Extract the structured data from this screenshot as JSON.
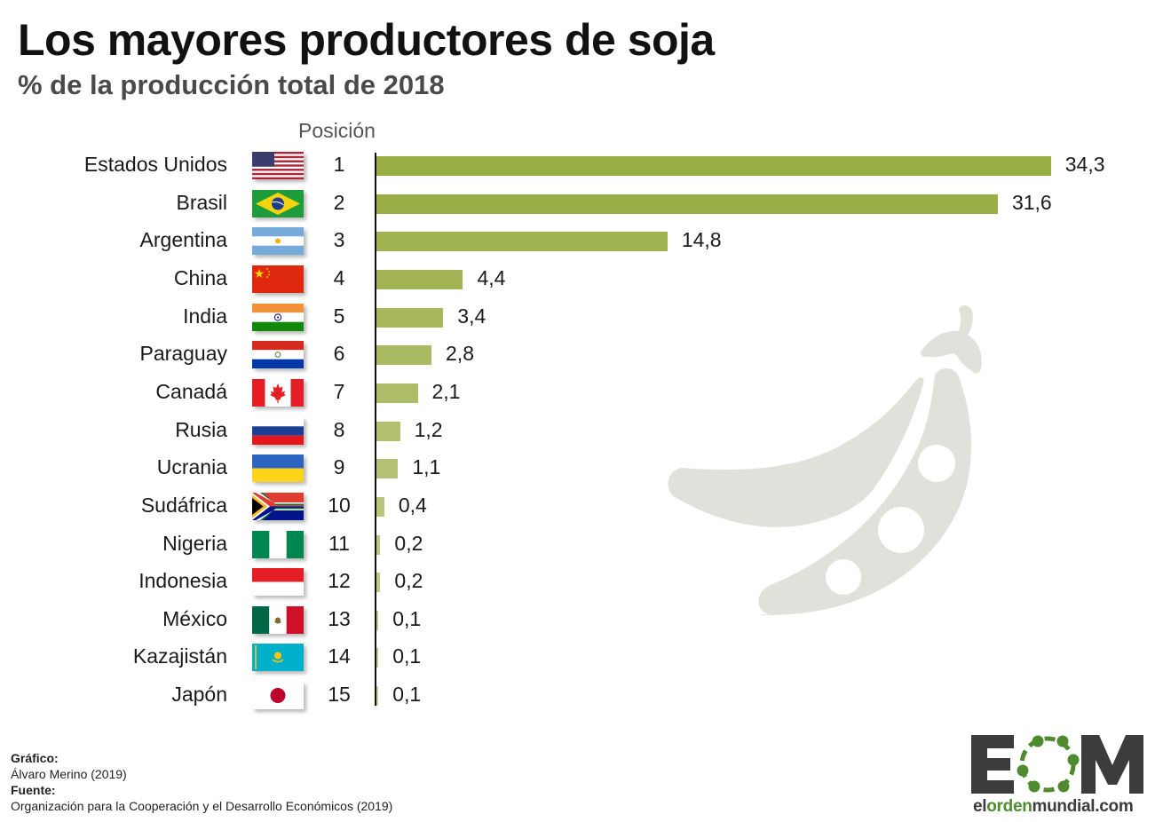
{
  "header": {
    "title": "Los mayores productores de soja",
    "subtitle": "% de la producción total de 2018",
    "position_header": "Posición"
  },
  "chart_data": {
    "type": "bar",
    "orientation": "horizontal",
    "title": "Los mayores productores de soja",
    "subtitle": "% de la producción total de 2018",
    "xlabel": "",
    "ylabel": "",
    "grid": false,
    "legend": null,
    "categories": [
      "Estados Unidos",
      "Brasil",
      "Argentina",
      "China",
      "India",
      "Paraguay",
      "Canadá",
      "Rusia",
      "Ucrania",
      "Sudáfrica",
      "Nigeria",
      "Indonesia",
      "México",
      "Kazajistán",
      "Japón"
    ],
    "positions": [
      1,
      2,
      3,
      4,
      5,
      6,
      7,
      8,
      9,
      10,
      11,
      12,
      13,
      14,
      15
    ],
    "values": [
      34.3,
      31.6,
      14.8,
      4.4,
      3.4,
      2.8,
      2.1,
      1.2,
      1.1,
      0.4,
      0.2,
      0.2,
      0.1,
      0.1,
      0.1
    ],
    "value_labels": [
      "34,3",
      "31,6",
      "14,8",
      "4,4",
      "3,4",
      "2,8",
      "2,1",
      "1,2",
      "1,1",
      "0,4",
      "0,2",
      "0,2",
      "0,1",
      "0,1",
      "0,1"
    ],
    "xlim": [
      0,
      35
    ]
  },
  "rows": [
    {
      "country": "Estados Unidos",
      "pos": "1",
      "label": "34,3",
      "value": 34.3,
      "flag": "us-flag",
      "color": "#9aae46"
    },
    {
      "country": "Brasil",
      "pos": "2",
      "label": "31,6",
      "value": 31.6,
      "flag": "brazil-flag",
      "color": "#9aae46"
    },
    {
      "country": "Argentina",
      "pos": "3",
      "label": "14,8",
      "value": 14.8,
      "flag": "argentina-flag",
      "color": "#a0b250"
    },
    {
      "country": "China",
      "pos": "4",
      "label": "4,4",
      "value": 4.4,
      "flag": "china-flag",
      "color": "#a2b456"
    },
    {
      "country": "India",
      "pos": "5",
      "label": "3,4",
      "value": 3.4,
      "flag": "india-flag",
      "color": "#a6b75c"
    },
    {
      "country": "Paraguay",
      "pos": "6",
      "label": "2,8",
      "value": 2.8,
      "flag": "paraguay-flag",
      "color": "#a9ba62"
    },
    {
      "country": "Canadá",
      "pos": "7",
      "label": "2,1",
      "value": 2.1,
      "flag": "canada-flag",
      "color": "#adbd68"
    },
    {
      "country": "Rusia",
      "pos": "8",
      "label": "1,2",
      "value": 1.2,
      "flag": "russia-flag",
      "color": "#b2c070"
    },
    {
      "country": "Ucrania",
      "pos": "9",
      "label": "1,1",
      "value": 1.1,
      "flag": "ukraine-flag",
      "color": "#b5c276"
    },
    {
      "country": "Sudáfrica",
      "pos": "10",
      "label": "0,4",
      "value": 0.4,
      "flag": "south-africa-flag",
      "color": "#b9c57c"
    },
    {
      "country": "Nigeria",
      "pos": "11",
      "label": "0,2",
      "value": 0.2,
      "flag": "nigeria-flag",
      "color": "#bcc882"
    },
    {
      "country": "Indonesia",
      "pos": "12",
      "label": "0,2",
      "value": 0.2,
      "flag": "indonesia-flag",
      "color": "#bfca88"
    },
    {
      "country": "México",
      "pos": "13",
      "label": "0,1",
      "value": 0.1,
      "flag": "mexico-flag",
      "color": "#c2cc8e"
    },
    {
      "country": "Kazajistán",
      "pos": "14",
      "label": "0,1",
      "value": 0.1,
      "flag": "kazakhstan-flag",
      "color": "#c4ce92"
    },
    {
      "country": "Japón",
      "pos": "15",
      "label": "0,1",
      "value": 0.1,
      "flag": "japan-flag",
      "color": "#c6d096"
    }
  ],
  "colors": {
    "bar_dark": "#9aae46",
    "bar_light": "#c6d096",
    "bean": "#e1e1dc",
    "logo_green": "#4e8a2e",
    "logo_gray": "#3c3c3c"
  },
  "credits": {
    "chart_label": "Gráfico:",
    "chart_author": "Álvaro Merino (2019)",
    "source_label": "Fuente:",
    "source": "Organización para la Cooperación y el Desarrollo Económicos (2019)"
  },
  "logo": {
    "letters": "EOM",
    "url": "elordenmundial.com"
  },
  "icons": {
    "illustration": "soybean-pod-icon"
  }
}
